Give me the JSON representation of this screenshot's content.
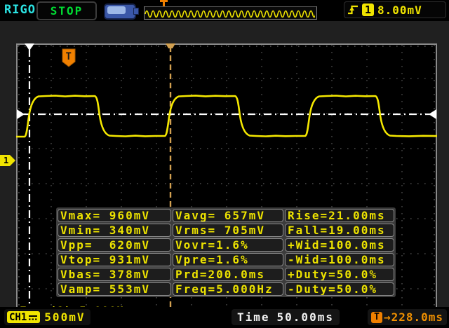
{
  "header": {
    "brand": "RIGOL",
    "run_state": "STOP",
    "trigger": {
      "edge_icon": "rising-edge-icon",
      "source_channel": "1",
      "level": "8.00mV"
    },
    "preview_marker": "T"
  },
  "display": {
    "trigger_badge": "T",
    "channel_marker": "1",
    "freq_counter": "Freq(1)=5.000Hz"
  },
  "measurements": {
    "rows": [
      {
        "c1": "Vmax= 960mV",
        "c2": "Vavg= 657mV",
        "c3": "Rise=21.00ms"
      },
      {
        "c1": "Vmin= 340mV",
        "c2": "Vrms= 705mV",
        "c3": "Fall=19.00ms"
      },
      {
        "c1": "Vpp=  620mV",
        "c2": "Vovr=1.6%",
        "c3": "+Wid=100.0ms"
      },
      {
        "c1": "Vtop= 931mV",
        "c2": "Vpre=1.6%",
        "c3": "-Wid=100.0ms"
      },
      {
        "c1": "Vbas= 378mV",
        "c2": "Prd=200.0ms",
        "c3": "+Duty=50.0%"
      },
      {
        "c1": "Vamp= 553mV",
        "c2": "Freq=5.000Hz",
        "c3": "-Duty=50.0%"
      }
    ]
  },
  "footer": {
    "channel_badge": "CH1",
    "vertical_scale": "500mV",
    "time_label": "Time",
    "time_value": "50.00ms",
    "offset_badge": "T",
    "offset_value": "→228.0ms"
  },
  "colors": {
    "accent_yellow": "#f0e400",
    "accent_orange": "#f08000",
    "trigger_line_tan": "#d2a050",
    "brand_cyan": "#2be3e3",
    "status_green": "#00dd33",
    "time_white": "#f2f2f2"
  }
}
